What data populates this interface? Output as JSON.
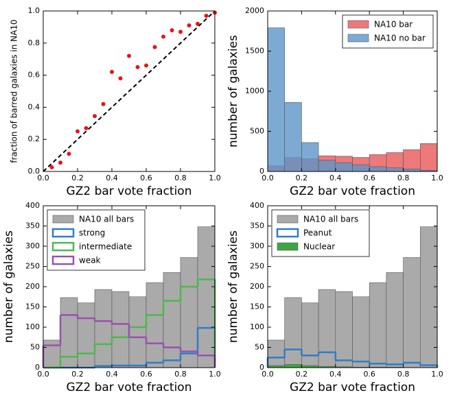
{
  "chart_data": [
    {
      "type": "scatter",
      "xlabel": "GZ2 bar vote fraction",
      "ylabel": "fraction of barred galaxies in NA10",
      "color": "#e8141a",
      "x": [
        0.05,
        0.1,
        0.15,
        0.2,
        0.25,
        0.3,
        0.35,
        0.4,
        0.45,
        0.5,
        0.55,
        0.6,
        0.65,
        0.7,
        0.75,
        0.8,
        0.85,
        0.9,
        0.95,
        1.0
      ],
      "values": [
        0.026,
        0.055,
        0.11,
        0.25,
        0.27,
        0.345,
        0.42,
        0.62,
        0.58,
        0.72,
        0.65,
        0.66,
        0.775,
        0.84,
        0.88,
        0.87,
        0.91,
        0.92,
        0.97,
        0.99
      ],
      "xlim": [
        0,
        1
      ],
      "ylim": [
        0,
        1
      ],
      "xticks": [
        {
          "value": 0,
          "label": "0.0"
        },
        {
          "value": 0.2,
          "label": "0.2"
        },
        {
          "value": 0.4,
          "label": "0.4"
        },
        {
          "value": 0.6,
          "label": "0.6"
        },
        {
          "value": 0.8,
          "label": "0.8"
        },
        {
          "value": 1,
          "label": "1.0"
        }
      ],
      "yticks": [
        {
          "value": 0,
          "label": "0.0"
        },
        {
          "value": 0.2,
          "label": "0.2"
        },
        {
          "value": 0.4,
          "label": "0.4"
        },
        {
          "value": 0.6,
          "label": "0.6"
        },
        {
          "value": 0.8,
          "label": "0.8"
        },
        {
          "value": 1,
          "label": "1.0"
        }
      ]
    },
    {
      "type": "histogram",
      "xlabel": "GZ2 bar vote fraction",
      "ylabel": "number of galaxies",
      "legend": "upper right",
      "bins": [
        0,
        0.1,
        0.2,
        0.3,
        0.4,
        0.5,
        0.6,
        0.7,
        0.8,
        0.9,
        1.0
      ],
      "series": [
        {
          "name": "NA10 bar",
          "color": "#e8575a",
          "style": "filled",
          "values": [
            70,
            175,
            160,
            195,
            190,
            175,
            210,
            235,
            272,
            348
          ]
        },
        {
          "name": "NA10 no bar",
          "color": "#5b95c8",
          "style": "filled",
          "values": [
            1790,
            860,
            360,
            140,
            110,
            85,
            60,
            45,
            30,
            15
          ]
        }
      ],
      "xlim": [
        0,
        1
      ],
      "ylim": [
        0,
        2000
      ],
      "xticks": [
        {
          "value": 0,
          "label": "0.0"
        },
        {
          "value": 0.2,
          "label": "0.2"
        },
        {
          "value": 0.4,
          "label": "0.4"
        },
        {
          "value": 0.6,
          "label": "0.6"
        },
        {
          "value": 0.8,
          "label": "0.8"
        },
        {
          "value": 1,
          "label": "1.0"
        }
      ],
      "yticks": [
        0,
        500,
        1000,
        1500,
        2000
      ]
    },
    {
      "type": "histogram",
      "xlabel": "GZ2 bar vote fraction",
      "ylabel": "number of galaxies",
      "legend": "upper left",
      "bins": [
        0,
        0.1,
        0.2,
        0.3,
        0.4,
        0.5,
        0.6,
        0.7,
        0.8,
        0.9,
        1.0
      ],
      "series": [
        {
          "name": "NA10 all bars",
          "color": "#aaaaaa",
          "style": "filled",
          "values": [
            68,
            173,
            160,
            193,
            188,
            175,
            210,
            235,
            272,
            348
          ]
        },
        {
          "name": "strong",
          "color": "#2f7dc4",
          "style": "step",
          "values": [
            0,
            0,
            0,
            4,
            5,
            5,
            12,
            18,
            35,
            98
          ]
        },
        {
          "name": "intermediate",
          "color": "#4cb84c",
          "style": "step",
          "values": [
            0,
            27,
            35,
            58,
            75,
            100,
            130,
            165,
            200,
            218
          ]
        },
        {
          "name": "weak",
          "color": "#9b4fb0",
          "style": "step",
          "values": [
            55,
            130,
            122,
            115,
            108,
            75,
            60,
            50,
            40,
            30
          ]
        }
      ],
      "xlim": [
        0,
        1
      ],
      "ylim": [
        0,
        400
      ],
      "xticks": [
        {
          "value": 0,
          "label": "0.0"
        },
        {
          "value": 0.2,
          "label": "0.2"
        },
        {
          "value": 0.4,
          "label": "0.4"
        },
        {
          "value": 0.6,
          "label": "0.6"
        },
        {
          "value": 0.8,
          "label": "0.8"
        },
        {
          "value": 1,
          "label": "1.0"
        }
      ],
      "yticks": [
        0,
        50,
        100,
        150,
        200,
        250,
        300,
        350,
        400
      ]
    },
    {
      "type": "histogram",
      "xlabel": "GZ2 bar vote fraction",
      "ylabel": "number of galaxies",
      "legend": "upper left",
      "bins": [
        0,
        0.1,
        0.2,
        0.3,
        0.4,
        0.5,
        0.6,
        0.7,
        0.8,
        0.9,
        1.0
      ],
      "series": [
        {
          "name": "NA10 all bars",
          "color": "#aaaaaa",
          "style": "filled",
          "values": [
            68,
            173,
            160,
            193,
            188,
            175,
            210,
            235,
            272,
            348
          ]
        },
        {
          "name": "Peanut",
          "color": "#2f7dc4",
          "style": "step",
          "values": [
            25,
            45,
            30,
            38,
            18,
            15,
            10,
            8,
            12,
            6
          ]
        },
        {
          "name": "Nuclear",
          "color": "#3fa63f",
          "style": "filled",
          "values": [
            5,
            8,
            5,
            3,
            2,
            1,
            1,
            1,
            0,
            0
          ]
        }
      ],
      "xlim": [
        0,
        1
      ],
      "ylim": [
        0,
        400
      ],
      "xticks": [
        {
          "value": 0,
          "label": "0.0"
        },
        {
          "value": 0.2,
          "label": "0.2"
        },
        {
          "value": 0.4,
          "label": "0.4"
        },
        {
          "value": 0.6,
          "label": "0.6"
        },
        {
          "value": 0.8,
          "label": "0.8"
        },
        {
          "value": 1,
          "label": "1.0"
        }
      ],
      "yticks": [
        0,
        50,
        100,
        150,
        200,
        250,
        300,
        350,
        400
      ]
    }
  ]
}
